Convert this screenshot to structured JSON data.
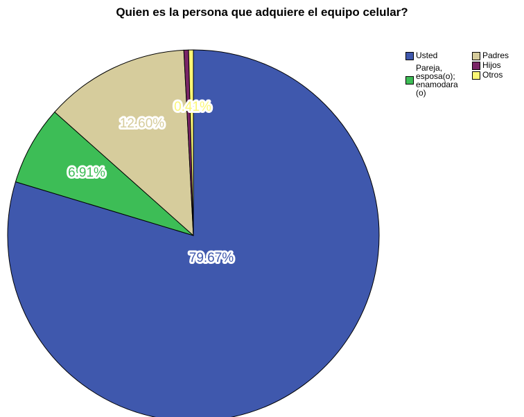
{
  "chart_data": {
    "type": "pie",
    "title": "Quien es la persona que adquiere el equipo celular?",
    "slices": [
      {
        "name": "Usted",
        "value": 79.67,
        "label": "79.67%",
        "color": "#3f58ad"
      },
      {
        "name": "Pareja, esposa(o); enamodara (o)",
        "value": 6.91,
        "label": "6.91%",
        "color": "#3dbd56"
      },
      {
        "name": "Padres",
        "value": 12.6,
        "label": "12.60%",
        "color": "#d6cc9c"
      },
      {
        "name": "Hijos",
        "value": 0.41,
        "label": "",
        "color": "#7a2567"
      },
      {
        "name": "Otros",
        "value": 0.41,
        "label": "0.41%",
        "color": "#fbf776"
      }
    ],
    "legend_position": "top-right"
  }
}
